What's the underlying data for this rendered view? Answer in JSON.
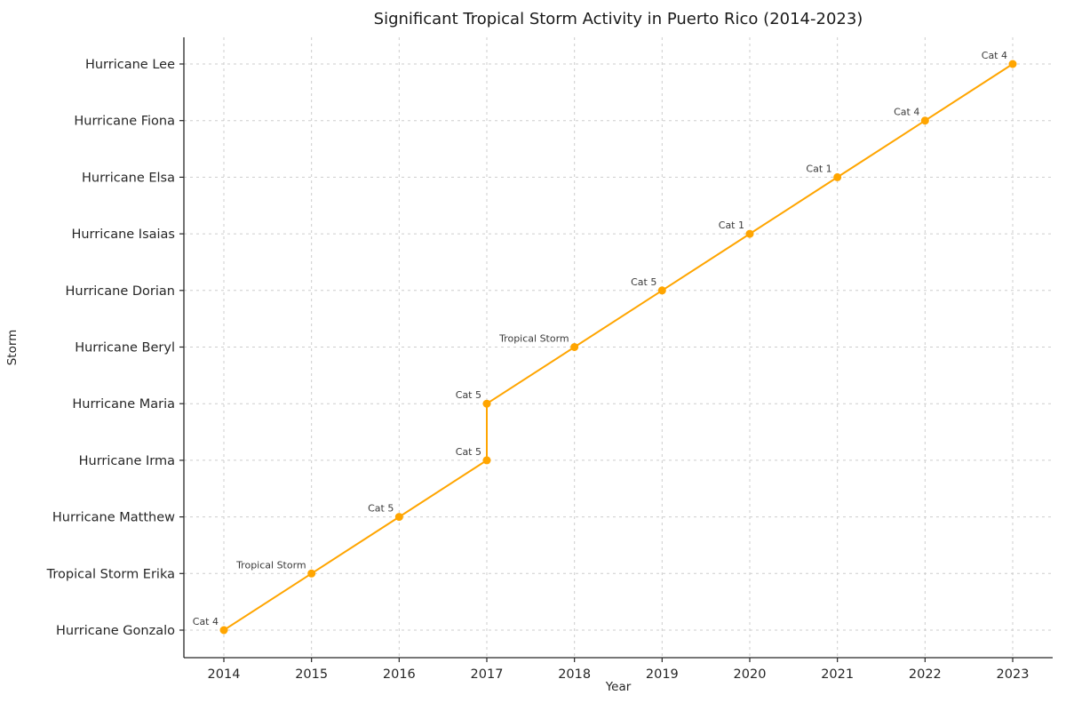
{
  "chart_data": {
    "type": "line",
    "title": "Significant Tropical Storm Activity in Puerto Rico (2014-2023)",
    "xlabel": "Year",
    "ylabel": "Storm",
    "x_ticks": [
      "2014",
      "2015",
      "2016",
      "2017",
      "2018",
      "2019",
      "2020",
      "2021",
      "2022",
      "2023"
    ],
    "categories": [
      "Hurricane Gonzalo",
      "Tropical Storm Erika",
      "Hurricane Matthew",
      "Hurricane Irma",
      "Hurricane Maria",
      "Hurricane Beryl",
      "Hurricane Dorian",
      "Hurricane Isaias",
      "Hurricane Elsa",
      "Hurricane Fiona",
      "Hurricane Lee"
    ],
    "x_range": [
      2014,
      2023
    ],
    "line_color": "#FFA500",
    "marker": "circle",
    "grid": true,
    "grid_style": "dashed",
    "points": [
      {
        "year": 2014,
        "storm": "Hurricane Gonzalo",
        "annotation": "Cat 4"
      },
      {
        "year": 2015,
        "storm": "Tropical Storm Erika",
        "annotation": "Tropical Storm"
      },
      {
        "year": 2016,
        "storm": "Hurricane Matthew",
        "annotation": "Cat 5"
      },
      {
        "year": 2017,
        "storm": "Hurricane Irma",
        "annotation": "Cat 5"
      },
      {
        "year": 2017,
        "storm": "Hurricane Maria",
        "annotation": "Cat 5"
      },
      {
        "year": 2018,
        "storm": "Hurricane Beryl",
        "annotation": "Tropical Storm"
      },
      {
        "year": 2019,
        "storm": "Hurricane Dorian",
        "annotation": "Cat 5"
      },
      {
        "year": 2020,
        "storm": "Hurricane Isaias",
        "annotation": "Cat 1"
      },
      {
        "year": 2021,
        "storm": "Hurricane Elsa",
        "annotation": "Cat 1"
      },
      {
        "year": 2022,
        "storm": "Hurricane Fiona",
        "annotation": "Cat 4"
      },
      {
        "year": 2023,
        "storm": "Hurricane Lee",
        "annotation": "Cat 4"
      }
    ]
  }
}
